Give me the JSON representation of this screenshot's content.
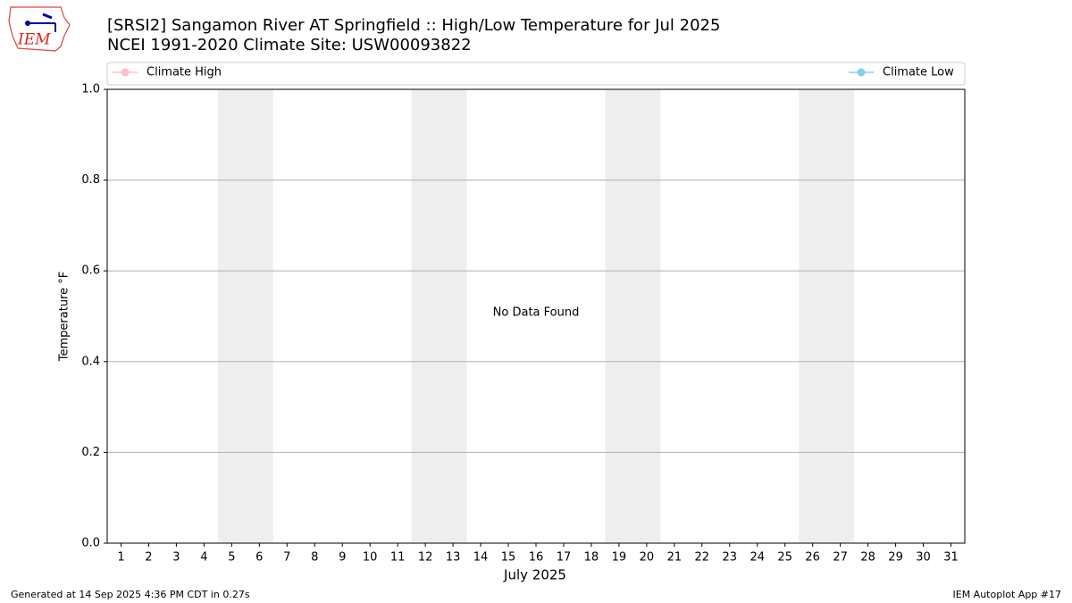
{
  "chart_data": {
    "type": "line",
    "title": "[SRSI2] Sangamon River  AT Springfield :: High/Low Temperature for Jul 2025",
    "subtitle": "NCEI 1991-2020 Climate Site: USW00093822",
    "logo_text": "IEM",
    "x_label": "July 2025",
    "y_label": "Temperature °F",
    "annotation": "No Data Found",
    "footer_left": "Generated at 14 Sep 2025 4:36 PM CDT in 0.27s",
    "footer_right": "IEM Autoplot App #17",
    "x": [
      1,
      2,
      3,
      4,
      5,
      6,
      7,
      8,
      9,
      10,
      11,
      12,
      13,
      14,
      15,
      16,
      17,
      18,
      19,
      20,
      21,
      22,
      23,
      24,
      25,
      26,
      27,
      28,
      29,
      30,
      31
    ],
    "series": [
      {
        "name": "Climate High",
        "color": "#ffc0cb",
        "values": [
          null,
          null,
          null,
          null,
          null,
          null,
          null,
          null,
          null,
          null,
          null,
          null,
          null,
          null,
          null,
          null,
          null,
          null,
          null,
          null,
          null,
          null,
          null,
          null,
          null,
          null,
          null,
          null,
          null,
          null,
          null
        ]
      },
      {
        "name": "Climate Low",
        "color": "#87ceeb",
        "values": [
          null,
          null,
          null,
          null,
          null,
          null,
          null,
          null,
          null,
          null,
          null,
          null,
          null,
          null,
          null,
          null,
          null,
          null,
          null,
          null,
          null,
          null,
          null,
          null,
          null,
          null,
          null,
          null,
          null,
          null,
          null
        ]
      }
    ],
    "shaded_x": [
      5,
      6,
      12,
      13,
      19,
      20,
      26,
      27
    ],
    "shade_color": "#eeeeee",
    "xlim": [
      0.5,
      31.5
    ],
    "xticks": [
      1,
      2,
      3,
      4,
      5,
      6,
      7,
      8,
      9,
      10,
      11,
      12,
      13,
      14,
      15,
      16,
      17,
      18,
      19,
      20,
      21,
      22,
      23,
      24,
      25,
      26,
      27,
      28,
      29,
      30,
      31
    ],
    "ylim": [
      0,
      1
    ],
    "yticks": [
      {
        "value": 0,
        "label": "0.0"
      },
      0.2,
      0.4,
      0.6,
      0.8,
      {
        "value": 1,
        "label": "1.0"
      }
    ],
    "grid": true
  }
}
